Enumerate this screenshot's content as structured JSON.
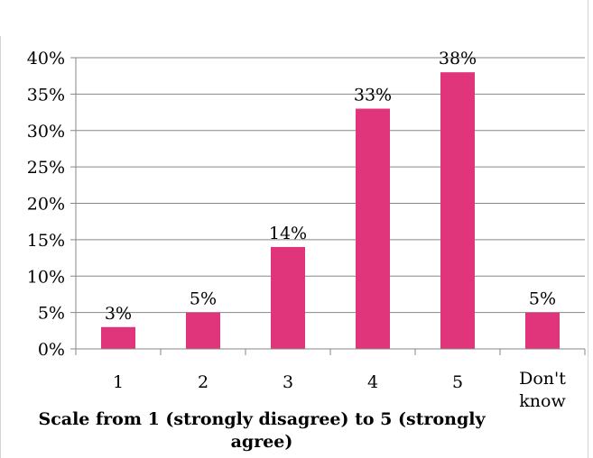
{
  "chart_data": {
    "type": "bar",
    "categories": [
      "1",
      "2",
      "3",
      "4",
      "5",
      "Don't know"
    ],
    "values": [
      3,
      5,
      14,
      33,
      38,
      5
    ],
    "data_labels": [
      "3%",
      "5%",
      "14%",
      "33%",
      "38%",
      "5%"
    ],
    "yticks": [
      "0%",
      "5%",
      "10%",
      "15%",
      "20%",
      "25%",
      "30%",
      "35%",
      "40%"
    ],
    "ylim": [
      0,
      40
    ],
    "title": "",
    "xlabel": "Scale from  1 (strongly disagree) to 5 (strongly agree)",
    "ylabel": "",
    "grid": true,
    "legend": "none",
    "colors": {
      "bar": "#e0357a",
      "grid": "#878787",
      "axis": "#878787"
    }
  }
}
